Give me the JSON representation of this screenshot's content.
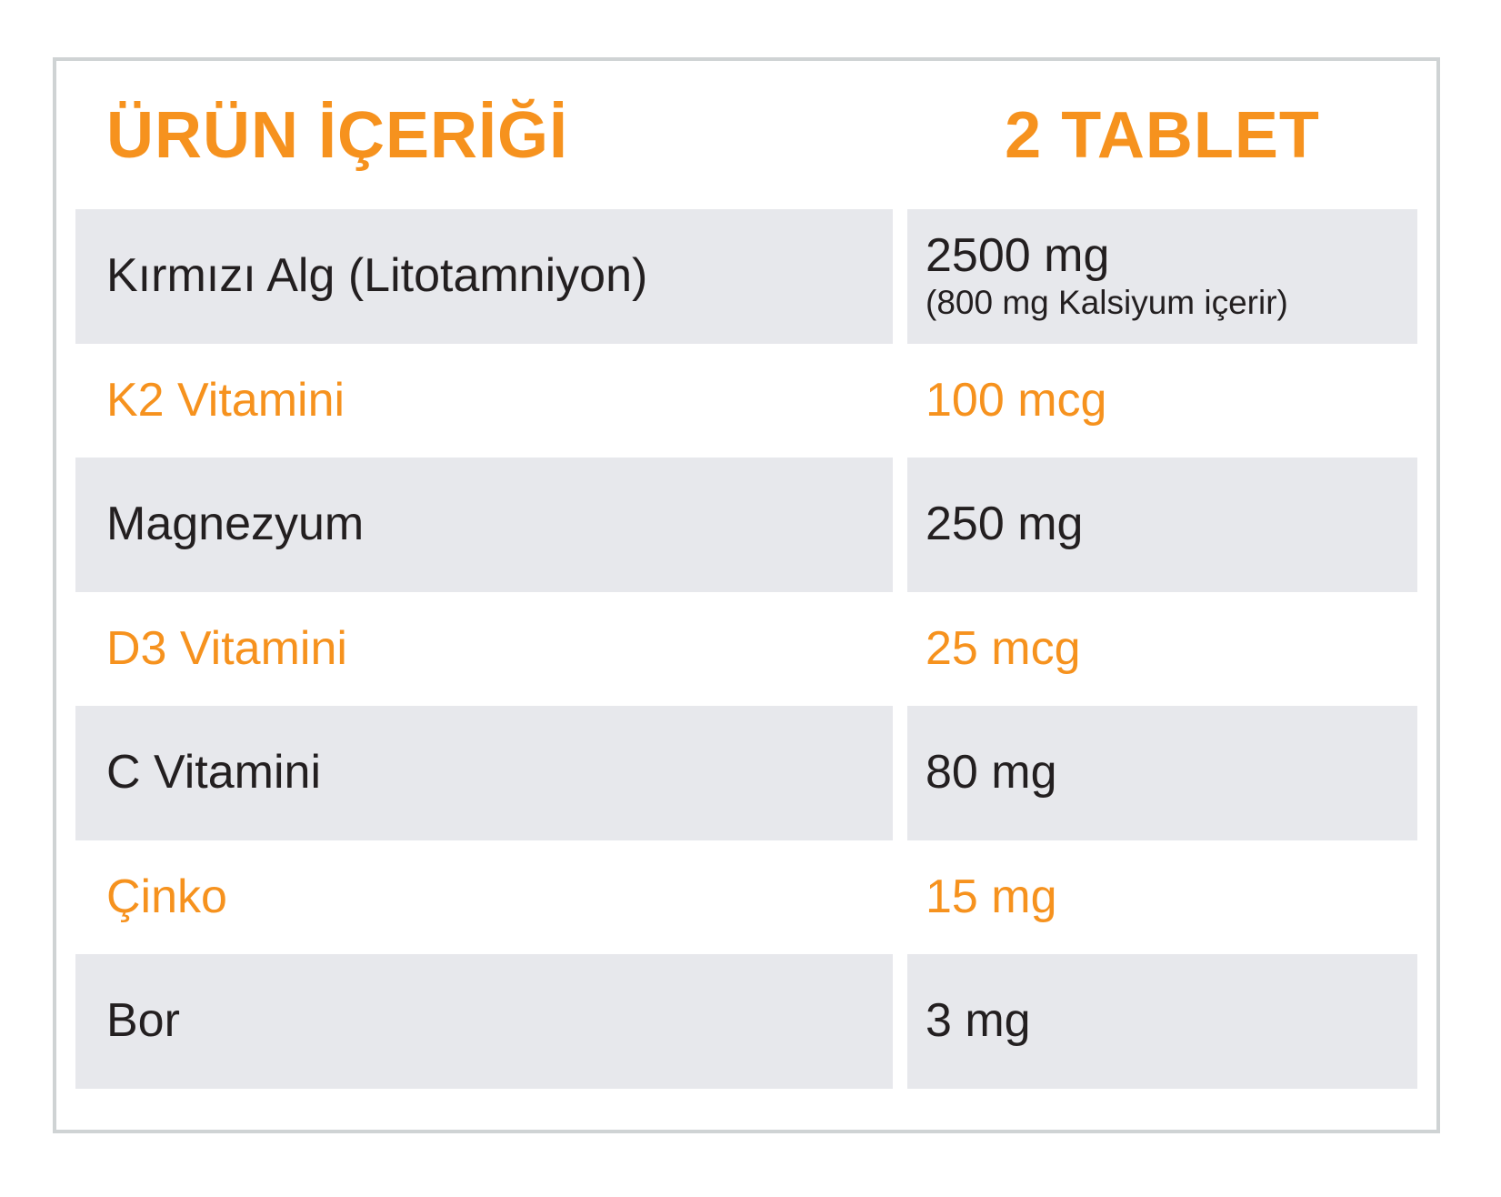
{
  "colors": {
    "accent": "#F6921E",
    "row_bg": "#E7E8EC",
    "text_dark": "#231F20",
    "border": "#CFD3D4"
  },
  "table": {
    "header": {
      "left": "ÜRÜN İÇERİĞİ",
      "right": "2 TABLET"
    },
    "rows": [
      {
        "label": "Kırmızı Alg (Litotamniyon)",
        "value": "2500 mg",
        "value_note": "(800 mg Kalsiyum içerir)",
        "highlight": false
      },
      {
        "label": "K2 Vitamini",
        "value": "100 mcg",
        "highlight": true
      },
      {
        "label": "Magnezyum",
        "value": "250 mg",
        "highlight": false
      },
      {
        "label": "D3 Vitamini",
        "value": "25 mcg",
        "highlight": true
      },
      {
        "label": "C Vitamini",
        "value": "80 mg",
        "highlight": false
      },
      {
        "label": "Çinko",
        "value": "15 mg",
        "highlight": true
      },
      {
        "label": "Bor",
        "value": "3 mg",
        "highlight": false
      }
    ]
  }
}
